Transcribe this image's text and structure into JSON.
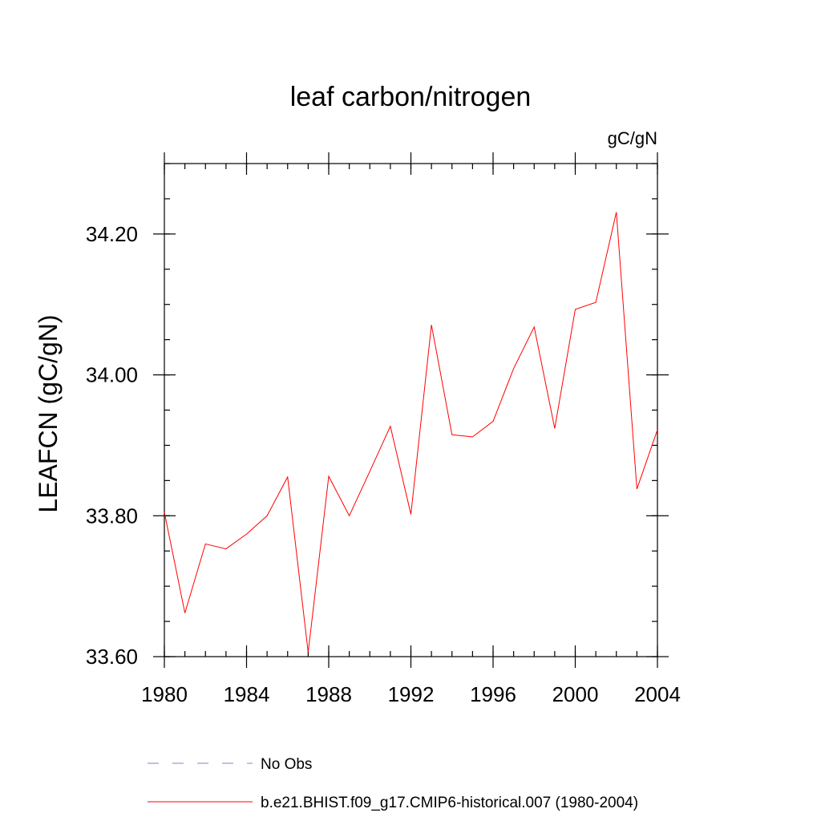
{
  "chart_data": {
    "type": "line",
    "title": "leaf carbon/nitrogen",
    "units": "gC/gN",
    "ylabel": "LEAFCN  (gC/gN)",
    "xlabel": "",
    "xlim": [
      1980,
      2004
    ],
    "ylim": [
      33.6,
      34.3
    ],
    "x_ticks": [
      1980,
      1984,
      1988,
      1992,
      1996,
      2000,
      2004
    ],
    "x_tick_labels": [
      "1980",
      "1984",
      "1988",
      "1992",
      "1996",
      "2000",
      "2004"
    ],
    "x_minor_step": 1,
    "y_ticks": [
      33.6,
      33.8,
      34.0,
      34.2
    ],
    "y_tick_labels": [
      "33.60",
      "33.80",
      "34.00",
      "34.20"
    ],
    "y_minor_step": 0.05,
    "grid": false,
    "legend_position": "bottom",
    "series": [
      {
        "name": "b.e21.BHIST.f09_g17.CMIP6-historical.007 (1980-2004)",
        "color": "#ff0000",
        "style": "solid",
        "x": [
          1980,
          1981,
          1982,
          1983,
          1984,
          1985,
          1986,
          1987,
          1988,
          1989,
          1990,
          1991,
          1992,
          1993,
          1994,
          1995,
          1996,
          1997,
          1998,
          1999,
          2000,
          2001,
          2002,
          2003,
          2004
        ],
        "values": [
          33.805,
          33.662,
          33.76,
          33.753,
          33.774,
          33.8,
          33.855,
          33.606,
          33.856,
          33.8,
          33.863,
          33.927,
          33.802,
          34.071,
          33.915,
          33.912,
          33.934,
          34.009,
          34.068,
          33.924,
          34.093,
          34.103,
          34.231,
          33.838,
          33.922
        ]
      }
    ],
    "legend": [
      {
        "label": "No Obs",
        "color": "#8a7fd0",
        "style": "dashed"
      },
      {
        "label": "b.e21.BHIST.f09_g17.CMIP6-historical.007 (1980-2004)",
        "color": "#ff0000",
        "style": "solid"
      }
    ]
  }
}
